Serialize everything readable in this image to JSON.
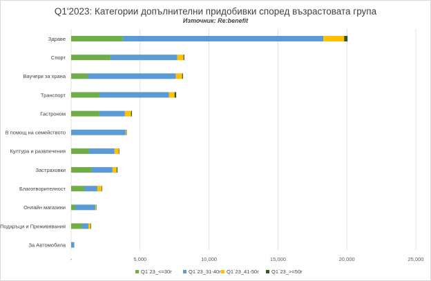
{
  "chart_data": {
    "type": "bar",
    "orientation": "horizontal",
    "stacked": true,
    "title": "Q1'2023: Категории допълнителни придобивки според възрастовата група",
    "subtitle": "Източник: Re:benefit",
    "xlabel": "",
    "ylabel": "",
    "xlim": [
      0,
      25000
    ],
    "x_ticks": [
      0,
      5000,
      10000,
      15000,
      20000,
      25000
    ],
    "x_tick_labels": [
      "-",
      "5,000",
      "10,000",
      "15,000",
      "20,000",
      "25,000"
    ],
    "grid": "vertical",
    "legend_position": "bottom",
    "categories": [
      "Здраве",
      "Спорт",
      "Ваучери за храна",
      "Транспорт",
      "Гастроном",
      "В помощ на семейството",
      "Култура и развлечения",
      "Застраховки",
      "Благотворителност",
      "Онлайн магазини",
      "Подаръци и Преживявания",
      "За Автомобила"
    ],
    "series": [
      {
        "name": "Q1`23_<=30г",
        "color": "#70ad47",
        "values": [
          3750,
          2850,
          1200,
          2050,
          2050,
          0,
          1300,
          1500,
          950,
          300,
          800,
          0
        ]
      },
      {
        "name": "Q1`23_31-40г",
        "color": "#5b9bd5",
        "values": [
          14550,
          4850,
          6400,
          5050,
          1850,
          3950,
          1850,
          1500,
          950,
          1450,
          450,
          230
        ]
      },
      {
        "name": "Q1`23_41-50г",
        "color": "#ffc000",
        "values": [
          1500,
          450,
          450,
          400,
          450,
          50,
          300,
          300,
          300,
          50,
          150,
          0
        ]
      },
      {
        "name": "Q1`23_>=50г",
        "color": "#375623",
        "values": [
          250,
          60,
          60,
          120,
          60,
          20,
          40,
          60,
          40,
          20,
          40,
          0
        ]
      }
    ]
  }
}
